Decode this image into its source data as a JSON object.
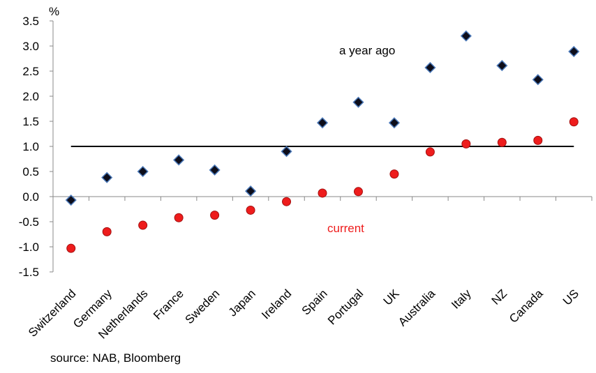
{
  "chart_data": {
    "type": "scatter",
    "unit_label": "%",
    "categories": [
      "Switzerland",
      "Germany",
      "Netherlands",
      "France",
      "Sweden",
      "Japan",
      "Ireland",
      "Spain",
      "Portugal",
      "UK",
      "Australia",
      "Italy",
      "NZ",
      "Canada",
      "US"
    ],
    "series": [
      {
        "name": "a year ago",
        "marker": "diamond",
        "color": "#0d0d1a",
        "edge_color": "#4a78b8",
        "values": [
          -0.07,
          0.38,
          0.5,
          0.73,
          0.53,
          0.11,
          0.9,
          1.47,
          1.88,
          1.47,
          2.57,
          3.2,
          2.61,
          2.33,
          2.89
        ]
      },
      {
        "name": "current",
        "marker": "circle",
        "color": "#ee1c1c",
        "edge_color": "#a31010",
        "values": [
          -1.03,
          -0.7,
          -0.57,
          -0.42,
          -0.37,
          -0.27,
          -0.1,
          0.07,
          0.1,
          0.45,
          0.89,
          1.05,
          1.08,
          1.12,
          1.49
        ]
      }
    ],
    "reference_line": 1.0,
    "ylim": [
      -1.5,
      3.5
    ],
    "yticks": [
      "3.5",
      "3.0",
      "2.5",
      "2.0",
      "1.5",
      "1.0",
      "0.5",
      "0.0",
      "-0.5",
      "-1.0",
      "-1.5"
    ],
    "grid": false,
    "annotations": {
      "year_ago_label": "a year ago",
      "current_label": "current"
    }
  },
  "source": "source: NAB, Bloomberg"
}
